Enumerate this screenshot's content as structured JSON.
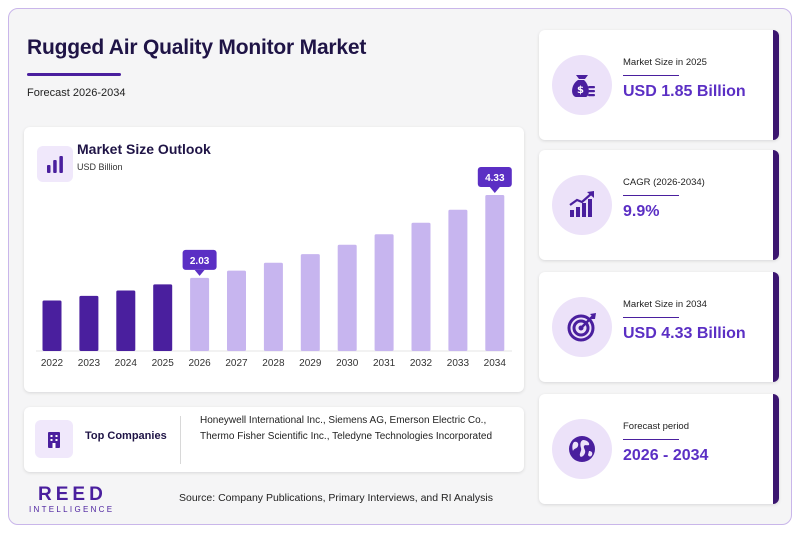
{
  "header": {
    "title": "Rugged Air Quality Monitor Market",
    "subtitle": "Forecast 2026-2034"
  },
  "chart_data": {
    "type": "bar",
    "title": "Market Size Outlook",
    "ylabel": "USD Billion",
    "categories": [
      "2022",
      "2023",
      "2024",
      "2025",
      "2026",
      "2027",
      "2028",
      "2029",
      "2030",
      "2031",
      "2032",
      "2033",
      "2034"
    ],
    "values": [
      1.4,
      1.53,
      1.68,
      1.85,
      2.03,
      2.23,
      2.45,
      2.69,
      2.95,
      3.24,
      3.56,
      3.92,
      4.33
    ],
    "historical_years": [
      "2022",
      "2023",
      "2024",
      "2025"
    ],
    "callouts": [
      {
        "category": "2026",
        "label": "2.03"
      },
      {
        "category": "2034",
        "label": "4.33"
      }
    ],
    "ylim": [
      0,
      4.33
    ],
    "grid": false,
    "colors": {
      "historical": "#4a1f9e",
      "forecast": "#c7b5ef",
      "callout": "#5b2fc4"
    }
  },
  "companies": {
    "label": "Top Companies",
    "text": "Honeywell International Inc., Siemens AG, Emerson Electric Co., Thermo Fisher Scientific Inc., Teledyne Technologies Incorporated"
  },
  "logo": {
    "main": "REED",
    "sub": "INTELLIGENCE"
  },
  "source": "Source: Company Publications, Primary Interviews, and RI Analysis",
  "stats": [
    {
      "label": "Market Size in 2025",
      "value": "USD 1.85 Billion",
      "icon": "money-bag-icon"
    },
    {
      "label": "CAGR (2026-2034)",
      "value": "9.9%",
      "icon": "growth-chart-icon"
    },
    {
      "label": "Market Size in 2034",
      "value": "USD 4.33 Billion",
      "icon": "target-icon"
    },
    {
      "label": "Forecast period",
      "value": "2026 - 2034",
      "icon": "globe-icon"
    }
  ],
  "colors": {
    "accent": "#4a1f9e",
    "accent_light": "#c7b5ef",
    "title": "#1f1446",
    "value": "#5b2fc4"
  }
}
